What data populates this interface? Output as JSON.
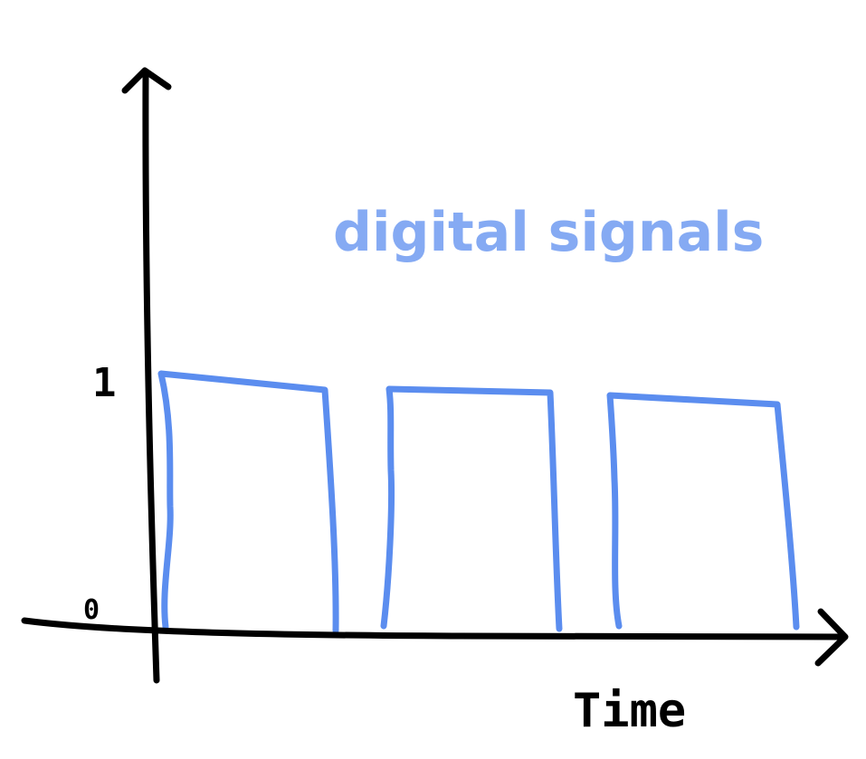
{
  "title": "digital signals",
  "x_axis": {
    "label": "Time"
  },
  "y_axis": {
    "ticks": [
      "1",
      "0"
    ]
  },
  "colors": {
    "signal": "#5b8def",
    "title": "#85aaf3",
    "ink": "#000000"
  },
  "signal": {
    "levels": [
      0,
      1
    ],
    "pulse_count": 3
  }
}
